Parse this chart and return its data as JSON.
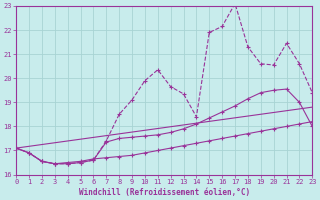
{
  "xlabel": "Windchill (Refroidissement éolien,°C)",
  "xlim": [
    0,
    23
  ],
  "ylim": [
    16,
    23
  ],
  "yticks": [
    16,
    17,
    18,
    19,
    20,
    21,
    22,
    23
  ],
  "xticks": [
    0,
    1,
    2,
    3,
    4,
    5,
    6,
    7,
    8,
    9,
    10,
    11,
    12,
    13,
    14,
    15,
    16,
    17,
    18,
    19,
    20,
    21,
    22,
    23
  ],
  "bg_color": "#c8ecec",
  "grid_color": "#a8d4d4",
  "line_color": "#993399",
  "line1_x": [
    0,
    1,
    2,
    3,
    4,
    5,
    6,
    7,
    8,
    9,
    10,
    11,
    12,
    13,
    14,
    15,
    16,
    17,
    18,
    19,
    20,
    21,
    22,
    23
  ],
  "line1_y": [
    17.1,
    16.9,
    16.55,
    16.45,
    16.45,
    16.5,
    16.6,
    17.4,
    18.5,
    19.1,
    19.9,
    20.35,
    19.65,
    19.35,
    18.4,
    21.9,
    22.15,
    23.1,
    21.3,
    20.6,
    20.55,
    21.45,
    20.6,
    19.4
  ],
  "line2_x": [
    0,
    1,
    2,
    3,
    4,
    5,
    6,
    7,
    8,
    9,
    10,
    11,
    12,
    13,
    14,
    15,
    16,
    17,
    18,
    19,
    20,
    21,
    22,
    23
  ],
  "line2_y": [
    17.1,
    16.9,
    16.55,
    16.45,
    16.45,
    16.5,
    16.6,
    17.35,
    17.5,
    17.55,
    17.6,
    17.65,
    17.75,
    17.9,
    18.1,
    18.35,
    18.6,
    18.85,
    19.15,
    19.4,
    19.5,
    19.55,
    19.0,
    18.0
  ],
  "line3_x": [
    0,
    1,
    2,
    3,
    4,
    5,
    6,
    7,
    8,
    9,
    10,
    11,
    12,
    13,
    14,
    15,
    16,
    17,
    18,
    19,
    20,
    21,
    22,
    23
  ],
  "line3_y": [
    17.1,
    16.9,
    16.55,
    16.45,
    16.5,
    16.55,
    16.65,
    16.7,
    16.75,
    16.8,
    16.9,
    17.0,
    17.1,
    17.2,
    17.3,
    17.4,
    17.5,
    17.6,
    17.7,
    17.8,
    17.9,
    18.0,
    18.1,
    18.2
  ],
  "line4_x": [
    0,
    23
  ],
  "line4_y": [
    17.1,
    18.8
  ]
}
